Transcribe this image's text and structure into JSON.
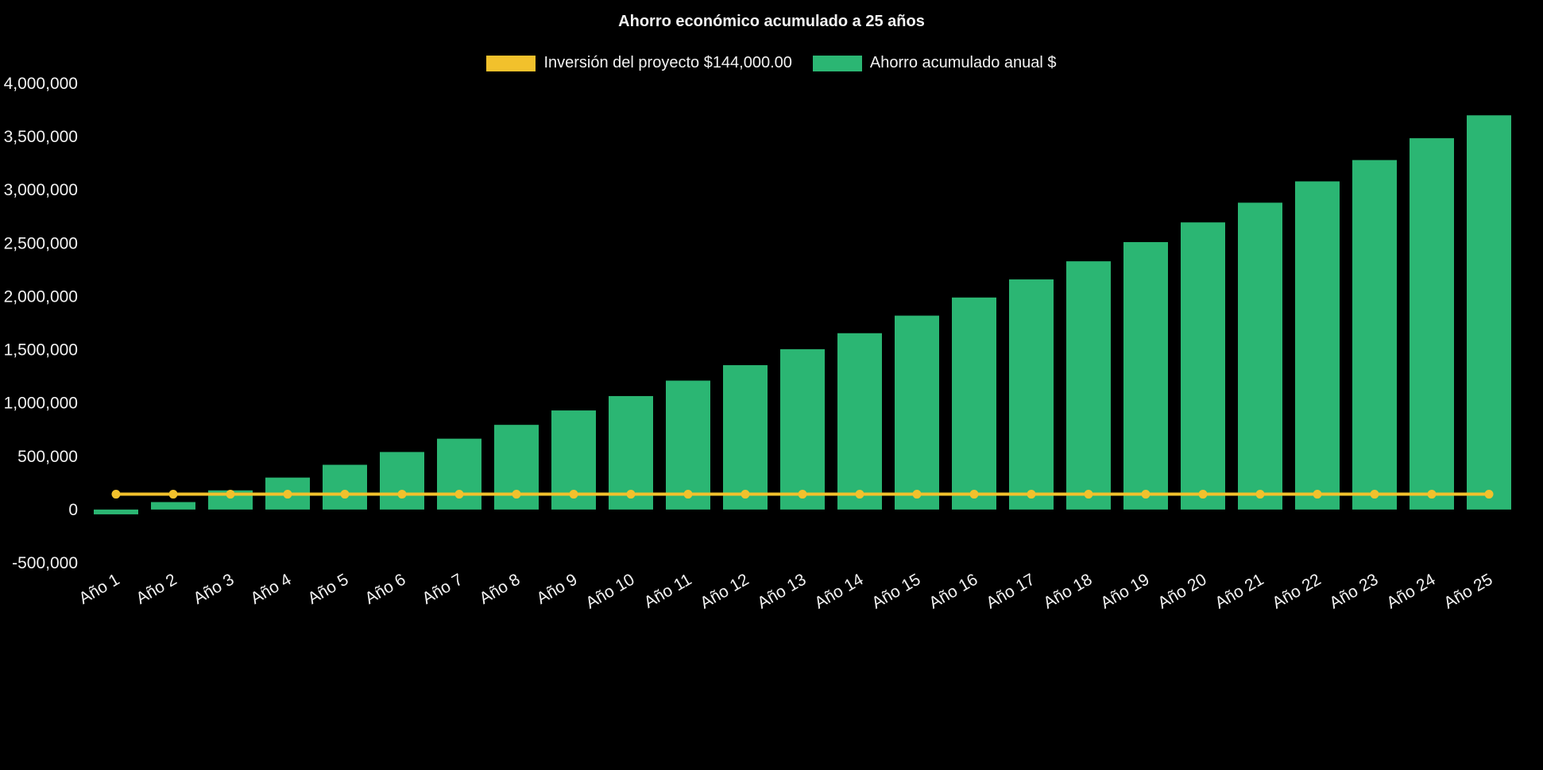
{
  "title": "Ahorro económico acumulado a 25 años",
  "legend": {
    "investment": {
      "label": "Inversión del proyecto $144,000.00",
      "color": "#F2C12C"
    },
    "savings": {
      "label": "Ahorro acumulado anual $",
      "color": "#2BB673"
    }
  },
  "chart_data": {
    "type": "bar",
    "title": "Ahorro económico acumulado a 25 años",
    "background": "#000000",
    "text_color": "#f2f2f2",
    "grid": false,
    "legend_position": "top",
    "ylim": [
      -500000,
      4000000
    ],
    "ytick_step": 500000,
    "xlabel": "",
    "ylabel": "",
    "categories": [
      "Año 1",
      "Año 2",
      "Año 3",
      "Año 4",
      "Año 5",
      "Año 6",
      "Año 7",
      "Año 8",
      "Año 9",
      "Año 10",
      "Año 11",
      "Año 12",
      "Año 13",
      "Año 14",
      "Año 15",
      "Año 16",
      "Año 17",
      "Año 18",
      "Año 19",
      "Año 20",
      "Año 21",
      "Año 22",
      "Año 23",
      "Año 24",
      "Año 25"
    ],
    "series": [
      {
        "name": "Inversión del proyecto $144,000.00",
        "type": "line",
        "color": "#F2C12C",
        "values": [
          144000,
          144000,
          144000,
          144000,
          144000,
          144000,
          144000,
          144000,
          144000,
          144000,
          144000,
          144000,
          144000,
          144000,
          144000,
          144000,
          144000,
          144000,
          144000,
          144000,
          144000,
          144000,
          144000,
          144000,
          144000
        ]
      },
      {
        "name": "Ahorro acumulado anual $",
        "type": "bar",
        "color": "#2BB673",
        "values": [
          -45000,
          70000,
          180000,
          300000,
          420000,
          540000,
          665000,
          795000,
          930000,
          1065000,
          1210000,
          1355000,
          1505000,
          1655000,
          1820000,
          1990000,
          2160000,
          2330000,
          2510000,
          2695000,
          2880000,
          3080000,
          3280000,
          3485000,
          3700000
        ]
      }
    ]
  }
}
